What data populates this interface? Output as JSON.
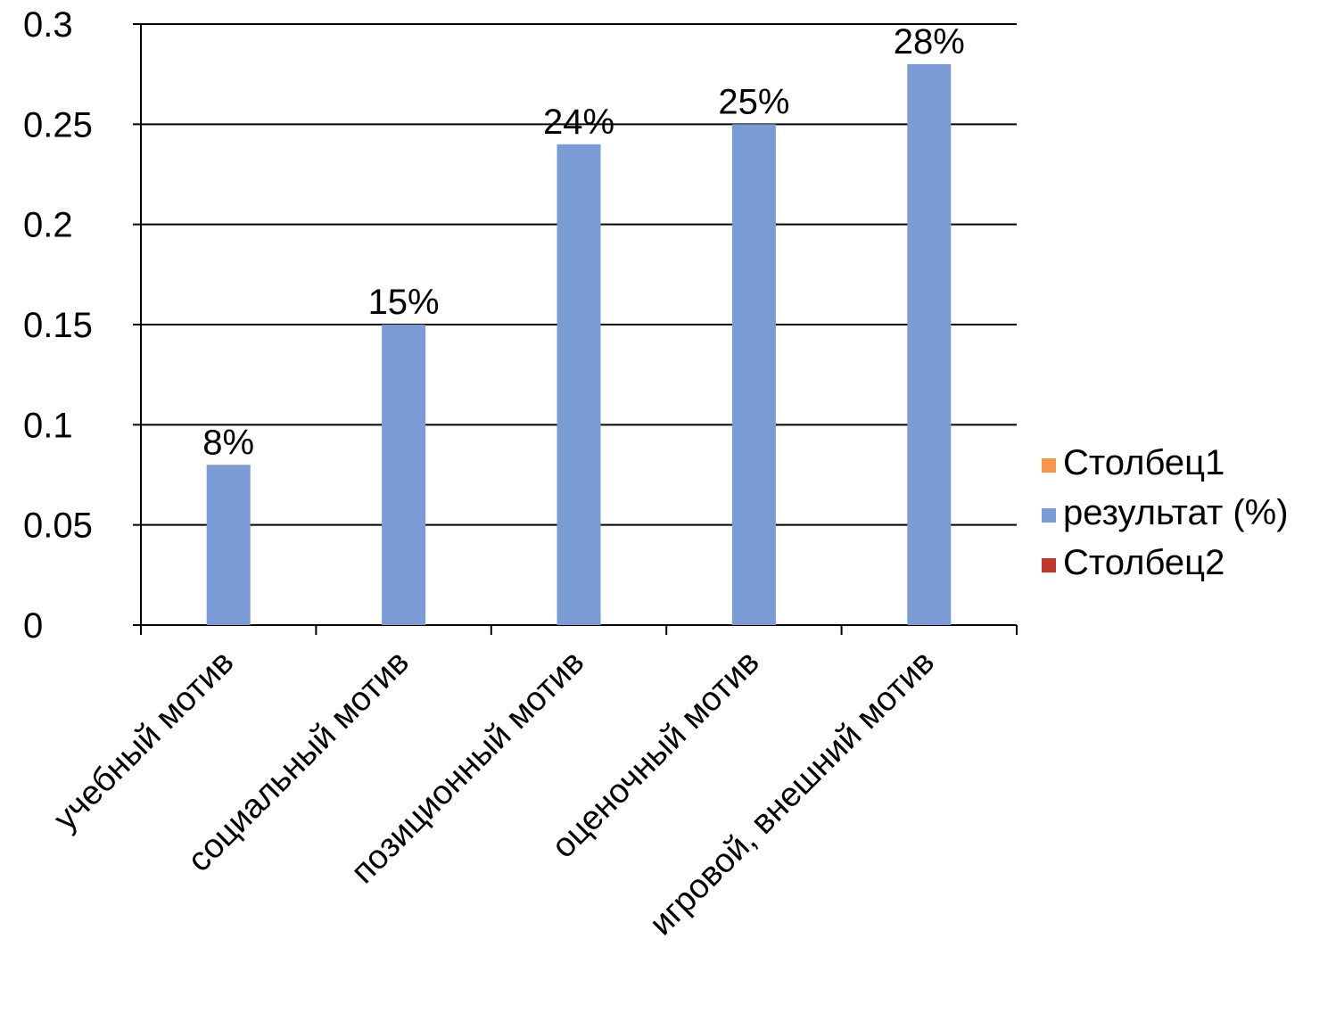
{
  "chart_data": {
    "type": "bar",
    "title": "",
    "xlabel": "",
    "ylabel": "",
    "categories": [
      "учебный мотив",
      "социальный мотив",
      "позиционный мотив",
      "оценочный мотив",
      "игровой, внешний мотив"
    ],
    "series": [
      {
        "name": "Столбец1",
        "color": "#f79646",
        "values": [
          null,
          null,
          null,
          null,
          null
        ]
      },
      {
        "name": "результат (%)",
        "color": "#7b9bd6",
        "values": [
          0.08,
          0.15,
          0.24,
          0.25,
          0.28
        ],
        "data_labels": [
          "8%",
          "15%",
          "24%",
          "25%",
          "28%"
        ]
      },
      {
        "name": "Столбец2",
        "color": "#c0392b",
        "values": [
          null,
          null,
          null,
          null,
          null
        ]
      }
    ],
    "ylim": [
      0,
      0.3
    ],
    "yticks": [
      "0",
      "0.05",
      "0.1",
      "0.15",
      "0.2",
      "0.25",
      "0.3"
    ],
    "grid": true,
    "legend_position": "right"
  }
}
